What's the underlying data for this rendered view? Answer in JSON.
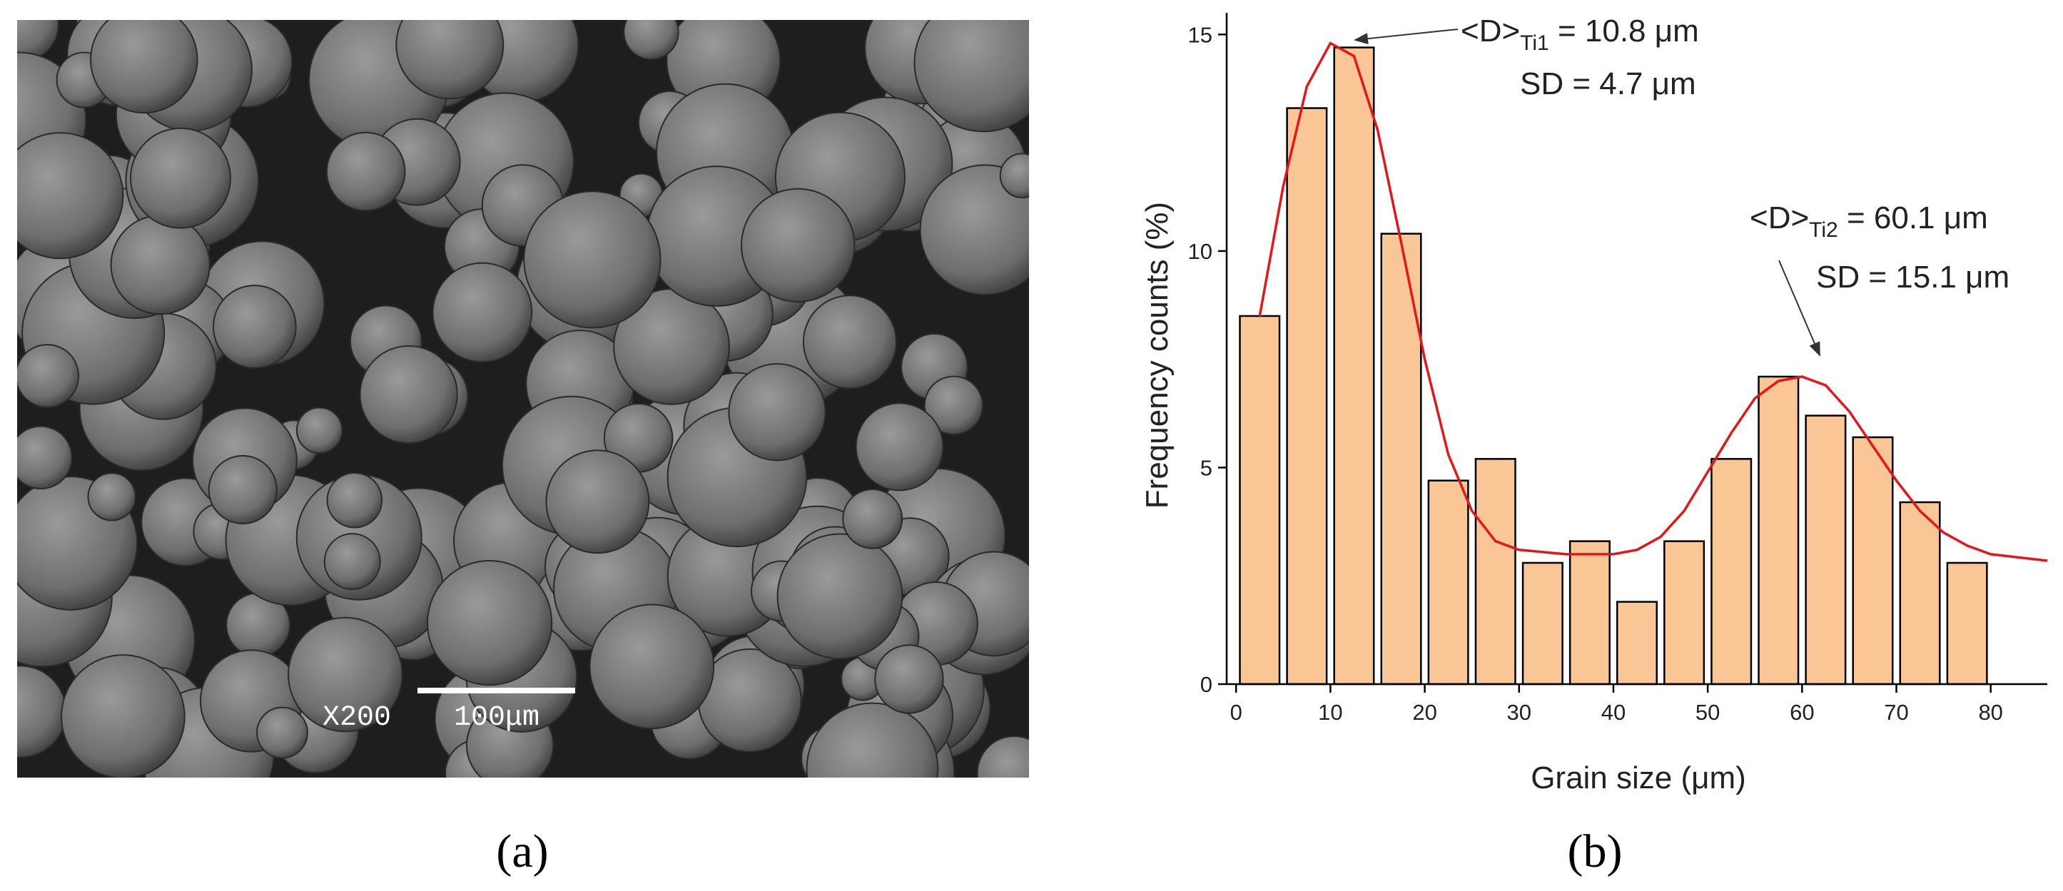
{
  "image": {
    "magnification": "X200",
    "scale_bar": "100μm",
    "caption": "(a)"
  },
  "chart_data": {
    "type": "histogram",
    "caption": "(b)",
    "x_label": "Grain size (μm)",
    "y_label": "Frequency counts  (%)",
    "bins": [
      0,
      5,
      10,
      15,
      20,
      25,
      30,
      35,
      40,
      45,
      50,
      55,
      60,
      65,
      70,
      75,
      80
    ],
    "values": [
      8.5,
      13.3,
      14.7,
      10.4,
      4.7,
      5.2,
      2.8,
      3.3,
      1.9,
      3.3,
      5.2,
      7.1,
      6.2,
      5.7,
      4.2,
      2.8
    ],
    "color": "#fac696",
    "fit": {
      "color": "#e3161c",
      "x": [
        2.5,
        5,
        7.5,
        10,
        12.5,
        15,
        17.5,
        20,
        22.5,
        25,
        27.5,
        30,
        35,
        40,
        42.5,
        45,
        47.5,
        50,
        52.5,
        55,
        57.5,
        60,
        62.5,
        65,
        67.5,
        70,
        72.5,
        75,
        77.5,
        80,
        86
      ],
      "values": [
        8.5,
        11.5,
        13.8,
        14.8,
        14.5,
        12.8,
        10.2,
        7.5,
        5.3,
        4.0,
        3.3,
        3.1,
        3.0,
        3.0,
        3.1,
        3.4,
        4.0,
        4.9,
        5.8,
        6.6,
        7.0,
        7.1,
        6.9,
        6.3,
        5.5,
        4.7,
        4.0,
        3.5,
        3.2,
        3.0,
        2.85
      ]
    },
    "xlim": [
      -1,
      86
    ],
    "xticks": [
      0,
      10,
      20,
      30,
      40,
      50,
      60,
      70,
      80
    ],
    "ylim": [
      0,
      15.5
    ],
    "yticks": [
      0,
      5,
      10,
      15
    ],
    "annotations": [
      {
        "prefix": "<D>",
        "subscript": "Ti1",
        "suffix": " = 10.8 μm",
        "line2": "SD = 4.7 μm"
      },
      {
        "prefix": "<D>",
        "subscript": "Ti2",
        "suffix": " = 60.1 μm",
        "line2": "SD = 15.1 μm"
      }
    ]
  }
}
